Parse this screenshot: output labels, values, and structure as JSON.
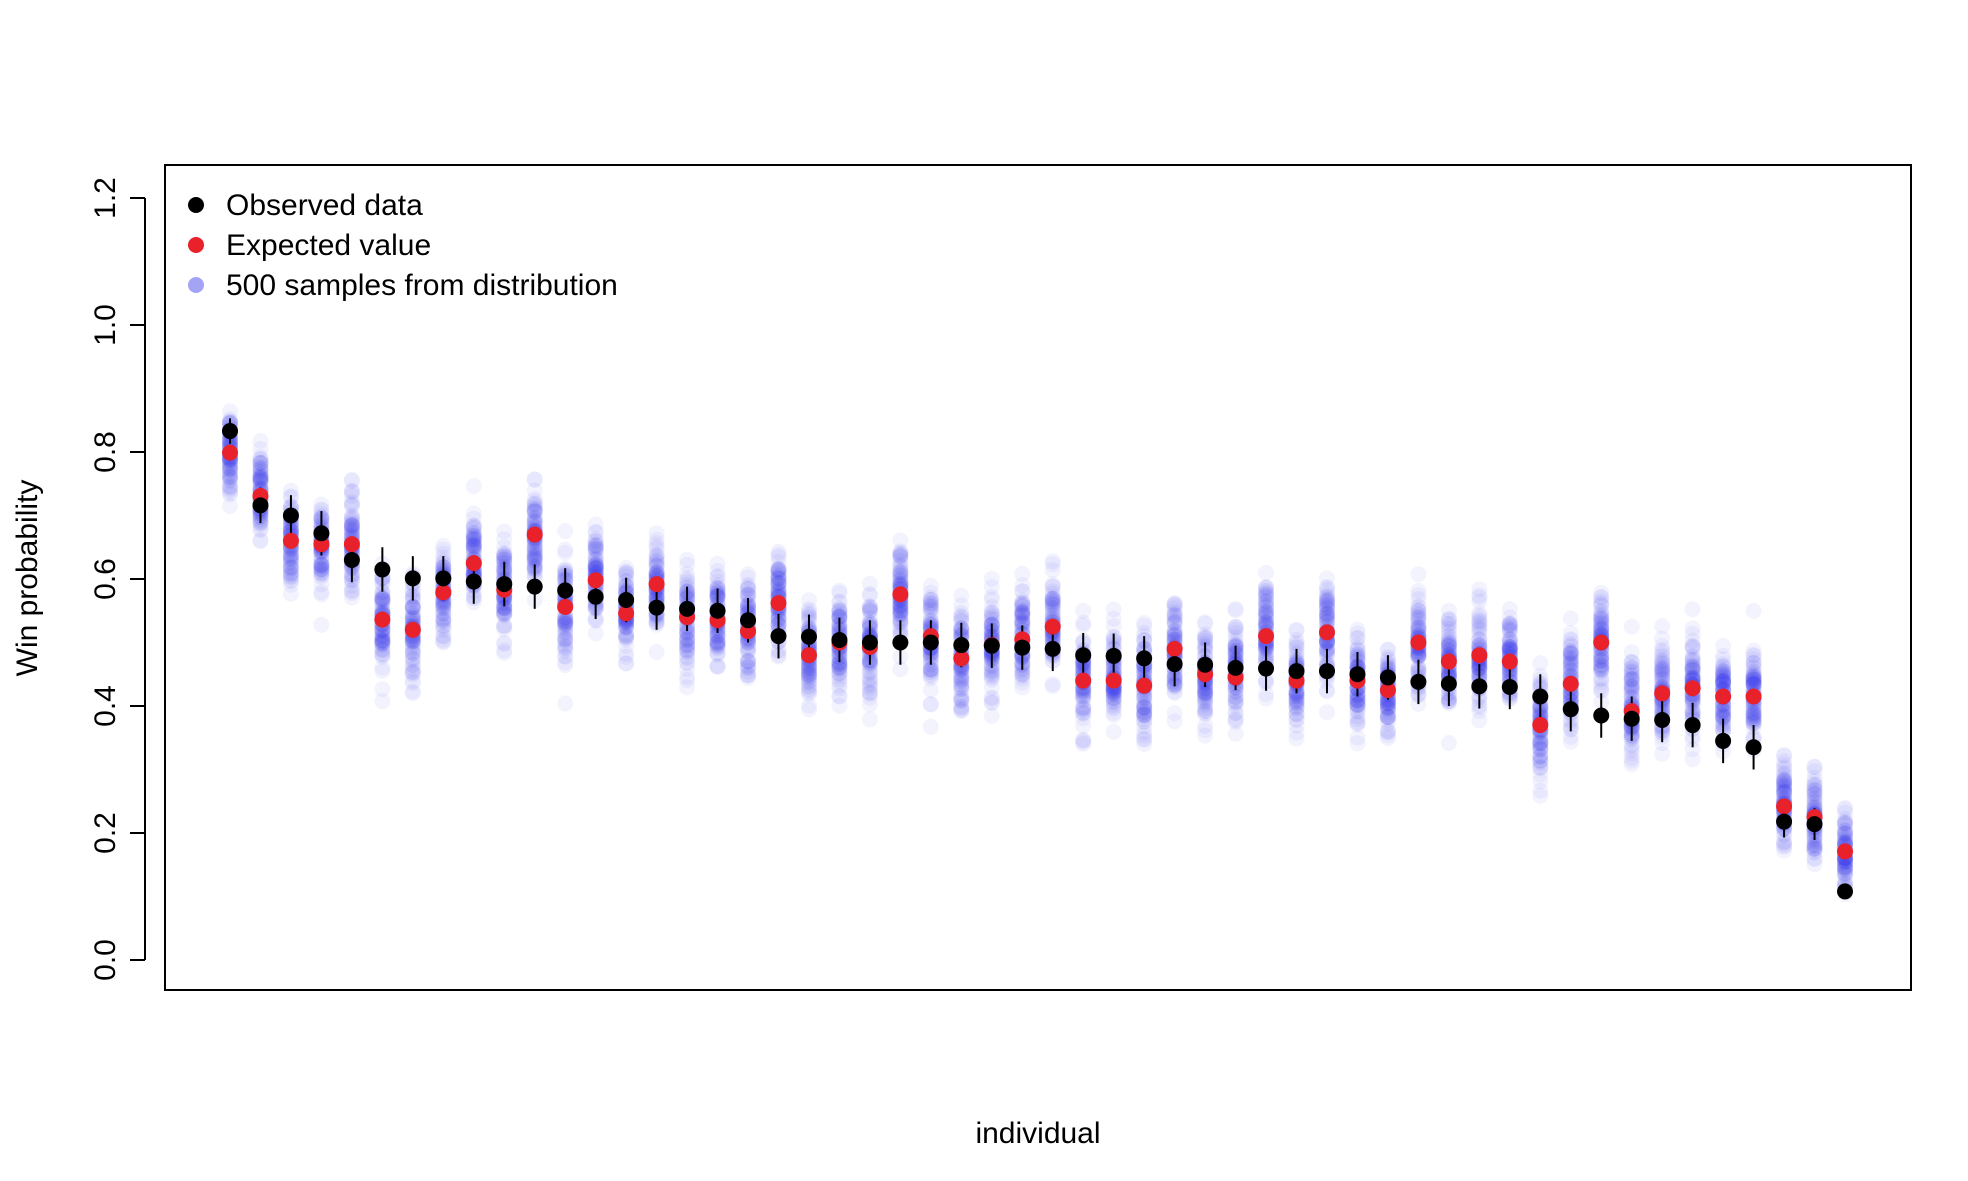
{
  "chart_data": {
    "type": "scatter",
    "title": "",
    "xlabel": "individual",
    "ylabel": "Win probability",
    "ylim": [
      -0.05,
      1.25
    ],
    "yticks": [
      "0.0",
      "0.2",
      "0.4",
      "0.6",
      "0.8",
      "1.0",
      "1.2"
    ],
    "grid": false,
    "legend": {
      "placement": "top-left",
      "entries": [
        {
          "label": "Observed data",
          "color": "#000000"
        },
        {
          "label": "Expected value",
          "color": "#e8212b"
        },
        {
          "label": "500 samples from distribution",
          "color": "#5a5af0"
        }
      ]
    },
    "colors": {
      "observed": "#000000",
      "expected": "#e8212b",
      "samples": "#2b2bf0"
    },
    "series": [
      {
        "name": "Observed data",
        "values": [
          0.833,
          0.716,
          0.7,
          0.672,
          0.63,
          0.615,
          0.601,
          0.601,
          0.596,
          0.592,
          0.588,
          0.582,
          0.572,
          0.567,
          0.555,
          0.553,
          0.55,
          0.535,
          0.51,
          0.509,
          0.504,
          0.5,
          0.5,
          0.5,
          0.496,
          0.495,
          0.492,
          0.49,
          0.48,
          0.479,
          0.475,
          0.466,
          0.465,
          0.46,
          0.459,
          0.455,
          0.455,
          0.45,
          0.445,
          0.438,
          0.435,
          0.431,
          0.43,
          0.415,
          0.395,
          0.385,
          0.38,
          0.378,
          0.37,
          0.345,
          0.335,
          0.218,
          0.214,
          0.108
        ]
      },
      {
        "name": "Expected value",
        "values": [
          0.799,
          0.731,
          0.66,
          0.655,
          0.655,
          0.536,
          0.52,
          0.579,
          0.625,
          0.583,
          0.67,
          0.556,
          0.598,
          0.546,
          0.592,
          0.54,
          0.535,
          0.518,
          0.562,
          0.48,
          0.5,
          0.493,
          0.576,
          0.51,
          0.475,
          0.496,
          0.505,
          0.525,
          0.44,
          0.44,
          0.432,
          0.49,
          0.45,
          0.445,
          0.51,
          0.44,
          0.516,
          0.44,
          0.425,
          0.5,
          0.47,
          0.48,
          0.47,
          0.37,
          0.435,
          0.5,
          0.392,
          0.42,
          0.428,
          0.415,
          0.415,
          0.242,
          0.225,
          0.171
        ]
      }
    ],
    "observed_error": [
      0.02,
      0.028,
      0.032,
      0.035,
      0.035,
      0.035,
      0.035,
      0.035,
      0.035,
      0.035,
      0.035,
      0.035,
      0.035,
      0.035,
      0.035,
      0.035,
      0.035,
      0.035,
      0.035,
      0.035,
      0.035,
      0.035,
      0.035,
      0.035,
      0.035,
      0.035,
      0.035,
      0.035,
      0.035,
      0.035,
      0.035,
      0.035,
      0.035,
      0.035,
      0.035,
      0.035,
      0.035,
      0.035,
      0.035,
      0.035,
      0.035,
      0.035,
      0.035,
      0.035,
      0.035,
      0.035,
      0.035,
      0.035,
      0.035,
      0.035,
      0.035,
      0.025,
      0.025,
      0.01
    ],
    "samples_per_individual": 500
  }
}
